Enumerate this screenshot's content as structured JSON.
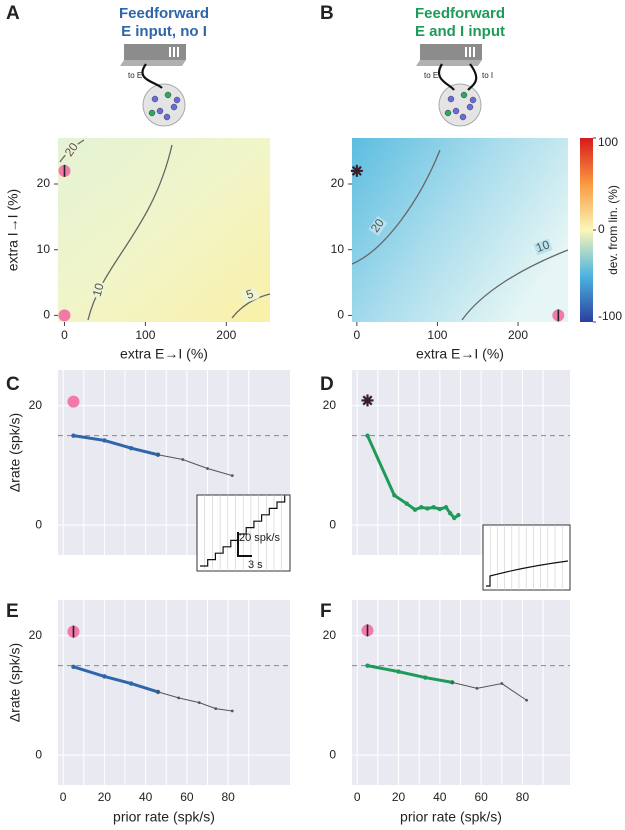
{
  "chart_data": [
    {
      "type": "heatmap",
      "panel": "A",
      "title": [
        "Feedforward",
        "E input, no I"
      ],
      "title_color": "#2f66a8",
      "schematic_labels": [
        "to E"
      ],
      "xlabel": "extra E→I (%)",
      "ylabel": "extra I→I (%)",
      "xlim": [
        -8,
        254
      ],
      "ylim": [
        -1,
        27
      ],
      "xticks": [
        0,
        100,
        200
      ],
      "yticks": [
        0,
        10,
        20
      ],
      "contour_labels": [
        "20",
        "10",
        "5"
      ],
      "markers": [
        {
          "x": 0,
          "y": 22,
          "symbol": "circle-bar"
        },
        {
          "x": 0,
          "y": 0,
          "symbol": "circle"
        }
      ]
    },
    {
      "type": "heatmap",
      "panel": "B",
      "title": [
        "Feedforward",
        "E and I input"
      ],
      "title_color": "#1e9b58",
      "schematic_labels": [
        "to E",
        "to I"
      ],
      "xlabel": "extra E→I (%)",
      "xlim": [
        -6,
        262
      ],
      "ylim": [
        -1,
        27
      ],
      "xticks": [
        0,
        100,
        200
      ],
      "yticks": [
        0,
        10,
        20
      ],
      "contour_labels": [
        "20",
        "10"
      ],
      "markers": [
        {
          "x": 0,
          "y": 22,
          "symbol": "star"
        },
        {
          "x": 250,
          "y": 0,
          "symbol": "circle-bar"
        }
      ],
      "colorbar": {
        "label": "dev. from lin. (%)",
        "lim": [
          -100,
          100
        ],
        "ticks": [
          100,
          0,
          -100
        ]
      }
    },
    {
      "type": "line",
      "panel": "C",
      "ylabel": "Δrate (spk/s)",
      "xlim": [
        -2.5,
        110
      ],
      "ylim": [
        -5,
        26
      ],
      "yticks": [
        0,
        20
      ],
      "xticks": [
        0,
        20,
        40,
        60,
        80
      ],
      "show_xtick_labels": false,
      "minor_xticks": [
        10,
        30,
        50,
        70,
        90
      ],
      "reference": 15,
      "marker": {
        "x": 5,
        "y": 20.7,
        "symbol": "circle"
      },
      "inset_labels": [
        "20 spk/s",
        "3 s"
      ],
      "series": [
        {
          "color": "#2f66a8",
          "width": 3,
          "x": [
            5,
            20,
            33,
            46
          ],
          "values": [
            15,
            14.2,
            12.9,
            11.8
          ]
        },
        {
          "color": "#555555",
          "width": 1,
          "x": [
            46,
            58,
            70,
            82
          ],
          "values": [
            11.8,
            11,
            9.5,
            8.3
          ]
        }
      ]
    },
    {
      "type": "line",
      "panel": "D",
      "xlim": [
        -2.5,
        103
      ],
      "ylim": [
        -5,
        26
      ],
      "yticks": [
        0,
        20
      ],
      "xticks": [
        0,
        20,
        40,
        60,
        80
      ],
      "show_xtick_labels": false,
      "minor_xticks": [
        10,
        30,
        50,
        70,
        90
      ],
      "reference": 15,
      "marker": {
        "x": 5,
        "y": 20.9,
        "symbol": "star"
      },
      "series": [
        {
          "color": "#1e9b58",
          "width": 3,
          "x": [
            5,
            18,
            24,
            28,
            31,
            34,
            37,
            40,
            43,
            45,
            47,
            49
          ],
          "values": [
            15,
            5,
            3.6,
            2.6,
            3,
            2.8,
            3,
            2.7,
            3,
            2,
            1.2,
            1.7
          ]
        }
      ]
    },
    {
      "type": "line",
      "panel": "E",
      "ylabel": "Δrate (spk/s)",
      "xlabel": "prior rate (spk/s)",
      "xlim": [
        -2.5,
        110
      ],
      "ylim": [
        -5,
        26
      ],
      "yticks": [
        0,
        20
      ],
      "xticks": [
        0,
        20,
        40,
        60,
        80
      ],
      "show_xtick_labels": true,
      "minor_xticks": [
        10,
        30,
        50,
        70,
        90
      ],
      "reference": 15,
      "marker": {
        "x": 5,
        "y": 20.7,
        "symbol": "circle-bar"
      },
      "series": [
        {
          "color": "#2f66a8",
          "width": 3,
          "x": [
            5,
            20,
            33,
            46
          ],
          "values": [
            14.8,
            13.2,
            12,
            10.6
          ]
        },
        {
          "color": "#555555",
          "width": 1,
          "x": [
            46,
            56,
            66,
            74,
            82
          ],
          "values": [
            10.6,
            9.6,
            8.8,
            7.8,
            7.4
          ]
        }
      ]
    },
    {
      "type": "line",
      "panel": "F",
      "xlabel": "prior rate (spk/s)",
      "xlim": [
        -2.5,
        103
      ],
      "ylim": [
        -5,
        26
      ],
      "yticks": [
        0,
        20
      ],
      "xticks": [
        0,
        20,
        40,
        60,
        80
      ],
      "show_xtick_labels": true,
      "minor_xticks": [
        10,
        30,
        50,
        70,
        90
      ],
      "reference": 15,
      "marker": {
        "x": 5,
        "y": 20.9,
        "symbol": "circle-bar"
      },
      "series": [
        {
          "color": "#1e9b58",
          "width": 3,
          "x": [
            5,
            20,
            33,
            46
          ],
          "values": [
            15,
            14,
            13,
            12.2
          ]
        },
        {
          "color": "#555555",
          "width": 1,
          "x": [
            46,
            58,
            70,
            82
          ],
          "values": [
            12.2,
            11.2,
            12,
            9.2
          ]
        }
      ]
    }
  ]
}
